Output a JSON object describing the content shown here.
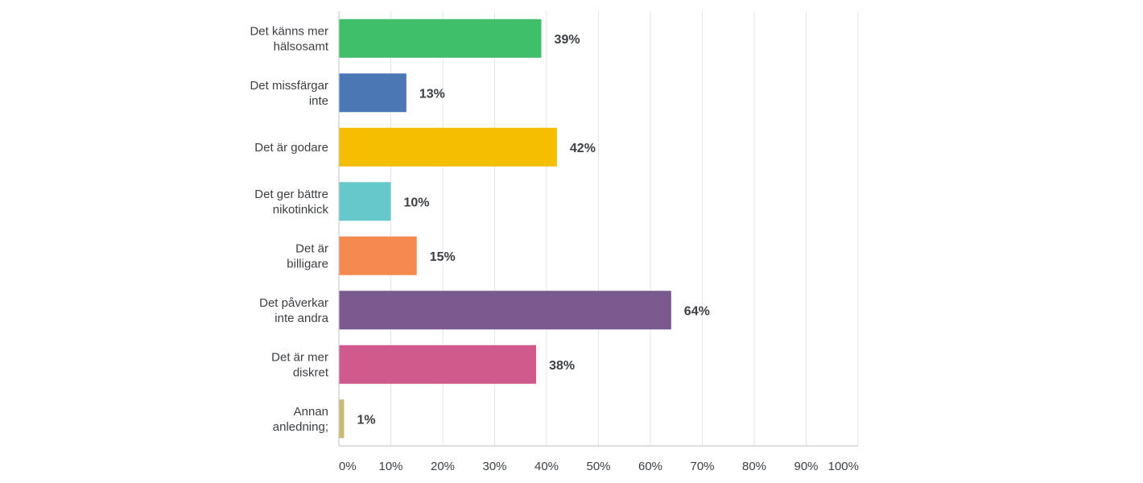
{
  "chart_data": {
    "type": "bar",
    "orientation": "horizontal",
    "title": "",
    "xlabel": "",
    "ylabel": "",
    "xlim": [
      0,
      100
    ],
    "grid": true,
    "categories": [
      [
        "Det känns mer",
        "hälsosamt"
      ],
      [
        "Det missfärgar",
        "inte"
      ],
      [
        "Det är godare"
      ],
      [
        "Det ger bättre",
        "nikotinkick"
      ],
      [
        "Det är",
        "billigare"
      ],
      [
        "Det påverkar",
        "inte andra"
      ],
      [
        "Det är mer",
        "diskret"
      ],
      [
        "Annan",
        "anledning;"
      ]
    ],
    "values": [
      39,
      13,
      42,
      10,
      15,
      64,
      38,
      1
    ],
    "value_labels": [
      "39%",
      "13%",
      "42%",
      "10%",
      "15%",
      "64%",
      "38%",
      "1%"
    ],
    "colors": [
      "#3fbf6a",
      "#4a78b5",
      "#f6be00",
      "#67c8cc",
      "#f6894f",
      "#7a5a8e",
      "#cf5a8b",
      "#cbb976"
    ],
    "ticks": [
      0,
      10,
      20,
      30,
      40,
      50,
      60,
      70,
      80,
      90,
      100
    ],
    "tick_labels": [
      "0%",
      "10%",
      "20%",
      "30%",
      "40%",
      "50%",
      "60%",
      "70%",
      "80%",
      "90%",
      "100%"
    ]
  }
}
